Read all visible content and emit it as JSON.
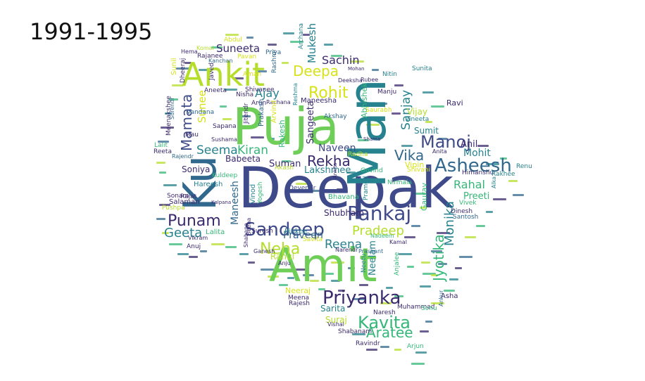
{
  "title": "1991-1995",
  "palette": {
    "dark": "#3b2a6e",
    "indigo": "#3e4a89",
    "blue": "#31688e",
    "teal": "#26828e",
    "green": "#35b779",
    "lime": "#6ece58",
    "yellow": "#b5de2b",
    "gold": "#d7e219"
  },
  "words": [
    {
      "text": "Deepak",
      "color": "#3e4a89"
    },
    {
      "text": "Amit",
      "color": "#6ece58"
    },
    {
      "text": "Puja",
      "color": "#6ece58"
    },
    {
      "text": "Man",
      "color": "#26828e"
    },
    {
      "text": "Ku",
      "color": "#31688e"
    },
    {
      "text": "Ankit",
      "color": "#b5de2b"
    },
    {
      "text": "Priyanka",
      "color": "#3b2a6e"
    },
    {
      "text": "Sandeep",
      "color": "#3e4a89"
    },
    {
      "text": "Pankaj",
      "color": "#3e4a89"
    },
    {
      "text": "Asheesh",
      "color": "#31688e"
    },
    {
      "text": "Manoj",
      "color": "#3e4a89"
    },
    {
      "text": "Kavita",
      "color": "#35b779"
    },
    {
      "text": "Punam",
      "color": "#3b2a6e"
    },
    {
      "text": "Neha",
      "color": "#b5de2b"
    },
    {
      "text": "Rohit",
      "color": "#d7e219"
    },
    {
      "text": "Deepa",
      "color": "#d7e219"
    },
    {
      "text": "Aratee",
      "color": "#35b779"
    },
    {
      "text": "Jyotika",
      "color": "#35b779"
    },
    {
      "text": "Rekha",
      "color": "#3b2a6e"
    },
    {
      "text": "Geeta",
      "color": "#26828e"
    },
    {
      "text": "Vika",
      "color": "#31688e"
    },
    {
      "text": "Pradeep",
      "color": "#b5de2b"
    },
    {
      "text": "Mamata",
      "color": "#3e4a89"
    },
    {
      "text": "Seema",
      "color": "#26828e"
    },
    {
      "text": "Kiran",
      "color": "#35b779"
    },
    {
      "text": "Reena",
      "color": "#26828e"
    },
    {
      "text": "Rahal",
      "color": "#35b779"
    },
    {
      "text": "Monika",
      "color": "#26828e"
    },
    {
      "text": "Sachin",
      "color": "#3b2a6e"
    },
    {
      "text": "Suneeta",
      "color": "#3b2a6e"
    },
    {
      "text": "Ajay",
      "color": "#26828e"
    },
    {
      "text": "Sanjay",
      "color": "#26828e"
    },
    {
      "text": "Mukesh",
      "color": "#26828e"
    },
    {
      "text": "Sunee",
      "color": "#d7e219"
    },
    {
      "text": "Naveen",
      "color": "#3e4a89"
    },
    {
      "text": "Suman",
      "color": "#3b2a6e"
    },
    {
      "text": "Lakshmee",
      "color": "#26828e"
    },
    {
      "text": "Babeeta",
      "color": "#3b2a6e"
    },
    {
      "text": "Soniya",
      "color": "#3b2a6e"
    },
    {
      "text": "Maneesh",
      "color": "#31688e"
    },
    {
      "text": "Sangeeta",
      "color": "#3b2a6e"
    },
    {
      "text": "Shubham",
      "color": "#3b2a6e"
    },
    {
      "text": "Praveen",
      "color": "#31688e"
    },
    {
      "text": "Neelam",
      "color": "#26828e"
    },
    {
      "text": "Sarita",
      "color": "#26828e"
    },
    {
      "text": "Suraj",
      "color": "#b5de2b"
    },
    {
      "text": "Mohit",
      "color": "#26828e"
    },
    {
      "text": "Anil",
      "color": "#3b2a6e"
    },
    {
      "text": "Preeti",
      "color": "#35b779"
    },
    {
      "text": "Sumit",
      "color": "#26828e"
    },
    {
      "text": "Vijay",
      "color": "#b5de2b"
    },
    {
      "text": "Ravi",
      "color": "#3b2a6e"
    },
    {
      "text": "Vipin",
      "color": "#d7e219"
    },
    {
      "text": "Gaurav",
      "color": "#35b779"
    },
    {
      "text": "Lalita",
      "color": "#35b779"
    },
    {
      "text": "Rahul",
      "color": "#b5de2b"
    },
    {
      "text": "Neeraj",
      "color": "#d7e219"
    },
    {
      "text": "Abhishek",
      "color": "#35b779"
    },
    {
      "text": "Akshay",
      "color": "#31688e"
    },
    {
      "text": "Maneesha",
      "color": "#3b2a6e"
    },
    {
      "text": "Shivanee",
      "color": "#3b2a6e"
    },
    {
      "text": "Aneeta",
      "color": "#3b2a6e"
    },
    {
      "text": "Nisha",
      "color": "#3b2a6e"
    },
    {
      "text": "Vandana",
      "color": "#31688e"
    },
    {
      "text": "Hareesh",
      "color": "#26828e"
    },
    {
      "text": "Salaman",
      "color": "#3b2a6e"
    },
    {
      "text": "Pushpa",
      "color": "#b5de2b"
    },
    {
      "text": "Sonam",
      "color": "#3b2a6e"
    },
    {
      "text": "Rajat",
      "color": "#3b2a6e"
    },
    {
      "text": "Vikram",
      "color": "#3b2a6e"
    },
    {
      "text": "Anuj",
      "color": "#3b2a6e"
    },
    {
      "text": "Kuldeep",
      "color": "#35b779"
    },
    {
      "text": "Pinkee",
      "color": "#26828e"
    },
    {
      "text": "Bhavana",
      "color": "#35b779"
    },
    {
      "text": "Devendr",
      "color": "#3e4a89"
    },
    {
      "text": "Vinod",
      "color": "#26828e"
    },
    {
      "text": "Yogesh",
      "color": "#35b779"
    },
    {
      "text": "Rajesh",
      "color": "#3b2a6e"
    },
    {
      "text": "Meena",
      "color": "#3b2a6e"
    },
    {
      "text": "Shabanam",
      "color": "#3b2a6e"
    },
    {
      "text": "Ravindr",
      "color": "#3b2a6e"
    },
    {
      "text": "Vishal",
      "color": "#3b2a6e"
    },
    {
      "text": "Naresh",
      "color": "#3b2a6e"
    },
    {
      "text": "Muhammad",
      "color": "#3b2a6e"
    },
    {
      "text": "Arjun",
      "color": "#35b779"
    },
    {
      "text": "Asha",
      "color": "#3b2a6e"
    },
    {
      "text": "Dinesh",
      "color": "#3b2a6e"
    },
    {
      "text": "Santosh",
      "color": "#31688e"
    },
    {
      "text": "Vivek",
      "color": "#35b779"
    },
    {
      "text": "Himanshu",
      "color": "#3b2a6e"
    },
    {
      "text": "Rakhee",
      "color": "#26828e"
    },
    {
      "text": "Renu",
      "color": "#26828e"
    },
    {
      "text": "Anita",
      "color": "#3b2a6e"
    },
    {
      "text": "Nitin",
      "color": "#26828e"
    },
    {
      "text": "Manju",
      "color": "#3b2a6e"
    },
    {
      "text": "Saurabh",
      "color": "#d7e219"
    },
    {
      "text": "Neetu",
      "color": "#26828e"
    },
    {
      "text": "Prashant",
      "color": "#31688e"
    },
    {
      "text": "Narendr",
      "color": "#3b2a6e"
    },
    {
      "text": "Kamal",
      "color": "#3b2a6e"
    },
    {
      "text": "Savita",
      "color": "#d7e219"
    },
    {
      "text": "Deeksha",
      "color": "#3b2a6e"
    },
    {
      "text": "Rubee",
      "color": "#3b2a6e"
    },
    {
      "text": "Archana",
      "color": "#26828e"
    },
    {
      "text": "Priya",
      "color": "#31688e"
    },
    {
      "text": "Pavan",
      "color": "#d7e219"
    },
    {
      "text": "Rajanee",
      "color": "#3b2a6e"
    },
    {
      "text": "Hema",
      "color": "#3b2a6e"
    },
    {
      "text": "Komal",
      "color": "#b5de2b"
    },
    {
      "text": "Abdul",
      "color": "#d7e219"
    },
    {
      "text": "Kanchan",
      "color": "#31688e"
    },
    {
      "text": "Javed",
      "color": "#3b2a6e"
    },
    {
      "text": "Aman",
      "color": "#d7e219"
    },
    {
      "text": "Arun",
      "color": "#3b2a6e"
    },
    {
      "text": "Rachana",
      "color": "#3b2a6e"
    },
    {
      "text": "Prakash",
      "color": "#31688e"
    },
    {
      "text": "Jitendr",
      "color": "#3b2a6e"
    },
    {
      "text": "Sapana",
      "color": "#3b2a6e"
    },
    {
      "text": "Sushama",
      "color": "#3b2a6e"
    },
    {
      "text": "Mau",
      "color": "#3b2a6e"
    },
    {
      "text": "Rajendr",
      "color": "#31688e"
    },
    {
      "text": "Reeta",
      "color": "#3b2a6e"
    },
    {
      "text": "Lalit",
      "color": "#35b779"
    },
    {
      "text": "Suresh",
      "color": "#3b2a6e"
    },
    {
      "text": "Ganesh",
      "color": "#3b2a6e"
    },
    {
      "text": "Anju",
      "color": "#3b2a6e"
    },
    {
      "text": "Shama",
      "color": "#3b2a6e"
    },
    {
      "text": "Govind",
      "color": "#35b779"
    },
    {
      "text": "Akash",
      "color": "#b5de2b"
    },
    {
      "text": "Radha",
      "color": "#b5de2b"
    },
    {
      "text": "Pramod",
      "color": "#26828e"
    },
    {
      "text": "Nirmala",
      "color": "#35b779"
    },
    {
      "text": "Shivani",
      "color": "#d7e219"
    },
    {
      "text": "Anjalee",
      "color": "#35b779"
    },
    {
      "text": "Nadeem",
      "color": "#35b779"
    },
    {
      "text": "Sonu",
      "color": "#35b779"
    },
    {
      "text": "Ankur",
      "color": "#31688e"
    },
    {
      "text": "Mohan",
      "color": "#3b2a6e"
    },
    {
      "text": "Shabana",
      "color": "#3b2a6e"
    },
    {
      "text": "Beena",
      "color": "#3b2a6e"
    },
    {
      "text": "Sunil",
      "color": "#d7e219"
    },
    {
      "text": "Sunita",
      "color": "#26828e"
    },
    {
      "text": "Vineeta",
      "color": "#26828e"
    },
    {
      "text": "Rashmi",
      "color": "#31688e"
    },
    {
      "text": "Reshma",
      "color": "#26828e"
    },
    {
      "text": "Meenakshee",
      "color": "#3b2a6e"
    },
    {
      "text": "Surendr",
      "color": "#31688e"
    },
    {
      "text": "Dheeraj",
      "color": "#3b2a6e"
    },
    {
      "text": "Rakesh",
      "color": "#35b779"
    },
    {
      "text": "Arvind",
      "color": "#d7e219"
    },
    {
      "text": "Ankita",
      "color": "#3b2a6e"
    },
    {
      "text": "Alka",
      "color": "#26828e"
    },
    {
      "text": "Kalpana",
      "color": "#3b2a6e"
    }
  ]
}
